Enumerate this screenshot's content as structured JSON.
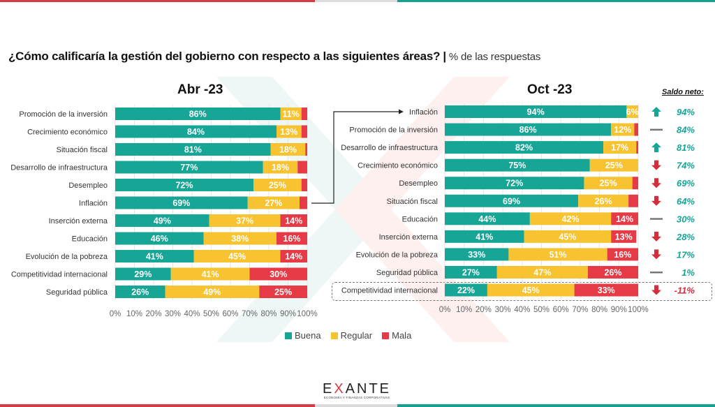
{
  "title": {
    "question": "¿Cómo calificaría la gestión del gobierno con respecto a las siguientes áreas?",
    "separator": "|",
    "subtitle": "% de las respuestas"
  },
  "colors": {
    "buena": "#17a596",
    "regular": "#f7c330",
    "mala": "#e63a46",
    "saldo_positive": "#17a596",
    "saldo_negative": "#d62d3c",
    "flat": "#777777"
  },
  "legend": [
    {
      "key": "buena",
      "label": "Buena"
    },
    {
      "key": "regular",
      "label": "Regular"
    },
    {
      "key": "mala",
      "label": "Mala"
    }
  ],
  "saldo_title": "Saldo neto:",
  "logo": {
    "name_pre": "E",
    "name_x": "X",
    "name_post": "ANTE",
    "tagline": "ECONOMÍA Y FINANZAS CORPORATIVAS"
  },
  "chart_data": [
    {
      "type": "bar",
      "orientation": "horizontal-stacked-100",
      "title": "Abr -23",
      "xlabel": "",
      "ylabel": "",
      "xlim": [
        0,
        100
      ],
      "x_ticks": [
        "0%",
        "10%",
        "20%",
        "30%",
        "40%",
        "50%",
        "60%",
        "70%",
        "80%",
        "90%",
        "100%"
      ],
      "grid": true,
      "legend": "bottom",
      "categories": [
        "Promoción de la inversión",
        "Crecimiento económico",
        "Situación fiscal",
        "Desarrollo de infraestructura",
        "Desempleo",
        "Inflación",
        "Inserción externa",
        "Educación",
        "Evolución de la pobreza",
        "Competitividad internacional",
        "Seguridad pública"
      ],
      "series": [
        {
          "name": "Buena",
          "values": [
            86,
            84,
            81,
            77,
            72,
            69,
            49,
            46,
            41,
            29,
            26
          ]
        },
        {
          "name": "Regular",
          "values": [
            11,
            13,
            18,
            18,
            25,
            27,
            37,
            38,
            45,
            41,
            49
          ]
        },
        {
          "name": "Mala",
          "values": [
            3,
            3,
            1,
            5,
            3,
            4,
            14,
            16,
            14,
            30,
            25
          ]
        }
      ],
      "data_labels": {
        "Buena": [
          "86%",
          "84%",
          "81%",
          "77%",
          "72%",
          "69%",
          "49%",
          "46%",
          "41%",
          "29%",
          "26%"
        ],
        "Regular": [
          "11%",
          "13%",
          "18%",
          "18%",
          "25%",
          "27%",
          "37%",
          "38%",
          "45%",
          "41%",
          "49%"
        ],
        "Mala": [
          "",
          "",
          "",
          "",
          "",
          "",
          "14%",
          "16%",
          "14%",
          "30%",
          "25%"
        ]
      }
    },
    {
      "type": "bar",
      "orientation": "horizontal-stacked-100",
      "title": "Oct -23",
      "xlabel": "",
      "ylabel": "",
      "xlim": [
        0,
        100
      ],
      "x_ticks": [
        "0%",
        "10%",
        "20%",
        "30%",
        "40%",
        "50%",
        "60%",
        "70%",
        "80%",
        "90%",
        "100%"
      ],
      "grid": true,
      "legend": "bottom",
      "categories": [
        "Inflación",
        "Promoción de la inversión",
        "Desarrollo de infraestructura",
        "Crecimiento económico",
        "Desempleo",
        "Situación fiscal",
        "Educación",
        "Inserción externa",
        "Evolución de la pobreza",
        "Seguridad pública",
        "Competitividad internacional"
      ],
      "series": [
        {
          "name": "Buena",
          "values": [
            94,
            86,
            82,
            75,
            72,
            69,
            44,
            41,
            33,
            27,
            22
          ]
        },
        {
          "name": "Regular",
          "values": [
            6,
            12,
            17,
            25,
            25,
            26,
            42,
            45,
            51,
            47,
            45
          ]
        },
        {
          "name": "Mala",
          "values": [
            0,
            2,
            1,
            0,
            3,
            5,
            14,
            13,
            16,
            26,
            33
          ]
        }
      ],
      "data_labels": {
        "Buena": [
          "94%",
          "86%",
          "82%",
          "75%",
          "72%",
          "69%",
          "44%",
          "41%",
          "33%",
          "27%",
          "22%"
        ],
        "Regular": [
          "6%",
          "12%",
          "17%",
          "25%",
          "25%",
          "26%",
          "42%",
          "45%",
          "51%",
          "47%",
          "45%"
        ],
        "Mala": [
          "",
          "",
          "",
          "",
          "",
          "",
          "14%",
          "13%",
          "16%",
          "26%",
          "33%"
        ]
      },
      "saldo_neto": [
        {
          "value": "94%",
          "trend": "up"
        },
        {
          "value": "84%",
          "trend": "flat"
        },
        {
          "value": "81%",
          "trend": "up"
        },
        {
          "value": "74%",
          "trend": "down"
        },
        {
          "value": "69%",
          "trend": "down"
        },
        {
          "value": "64%",
          "trend": "down"
        },
        {
          "value": "30%",
          "trend": "flat"
        },
        {
          "value": "28%",
          "trend": "down"
        },
        {
          "value": "17%",
          "trend": "down"
        },
        {
          "value": "1%",
          "trend": "flat"
        },
        {
          "value": "-11%",
          "trend": "down"
        }
      ],
      "annotations": [
        "Arrow from Abr -23 'Inflación' to Oct -23 'Inflación'",
        "Dashed box highlights 'Competitividad internacional'"
      ]
    }
  ]
}
